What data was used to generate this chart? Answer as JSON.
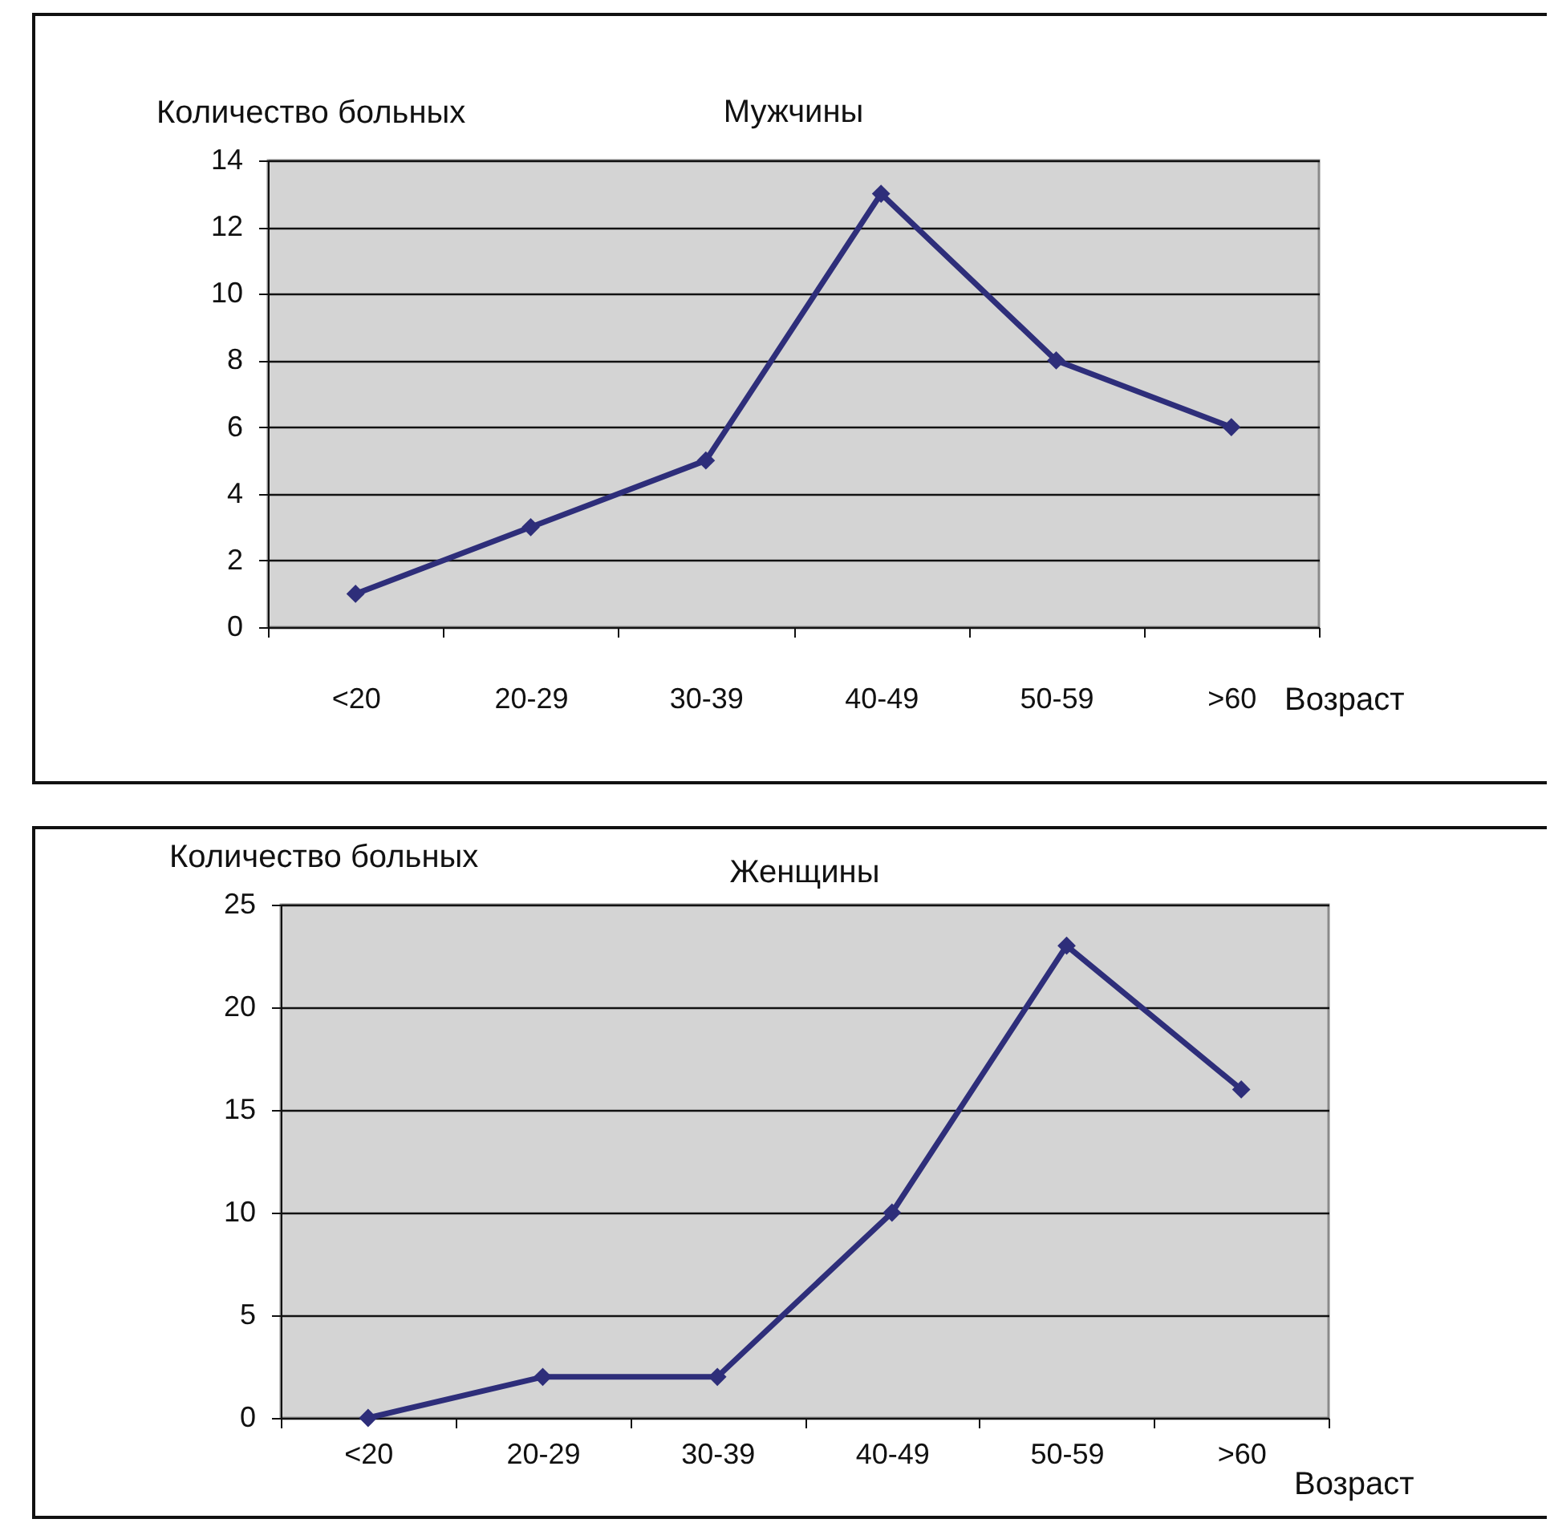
{
  "chart_data": [
    {
      "type": "line",
      "title": "Мужчины",
      "xlabel": "Возраст",
      "ylabel": "Количество больных",
      "categories": [
        "<20",
        "20-29",
        "30-39",
        "40-49",
        "50-59",
        ">60"
      ],
      "series": [
        {
          "color": "#2e2e7a",
          "values": [
            1,
            3,
            5,
            13,
            8,
            6
          ]
        }
      ],
      "ylim": [
        0,
        14
      ],
      "yticks": [
        0,
        2,
        4,
        6,
        8,
        10,
        12,
        14
      ],
      "grid": "y",
      "marker": "diamond"
    },
    {
      "type": "line",
      "title": "Женщины",
      "xlabel": "Возраст",
      "ylabel": "Количество больных",
      "categories": [
        "<20",
        "20-29",
        "30-39",
        "40-49",
        "50-59",
        ">60"
      ],
      "series": [
        {
          "color": "#2e2e7a",
          "values": [
            0,
            2,
            2,
            10,
            23,
            16
          ]
        }
      ],
      "ylim": [
        0,
        25
      ],
      "yticks": [
        0,
        5,
        10,
        15,
        20,
        25
      ],
      "grid": "y",
      "marker": "diamond"
    }
  ]
}
